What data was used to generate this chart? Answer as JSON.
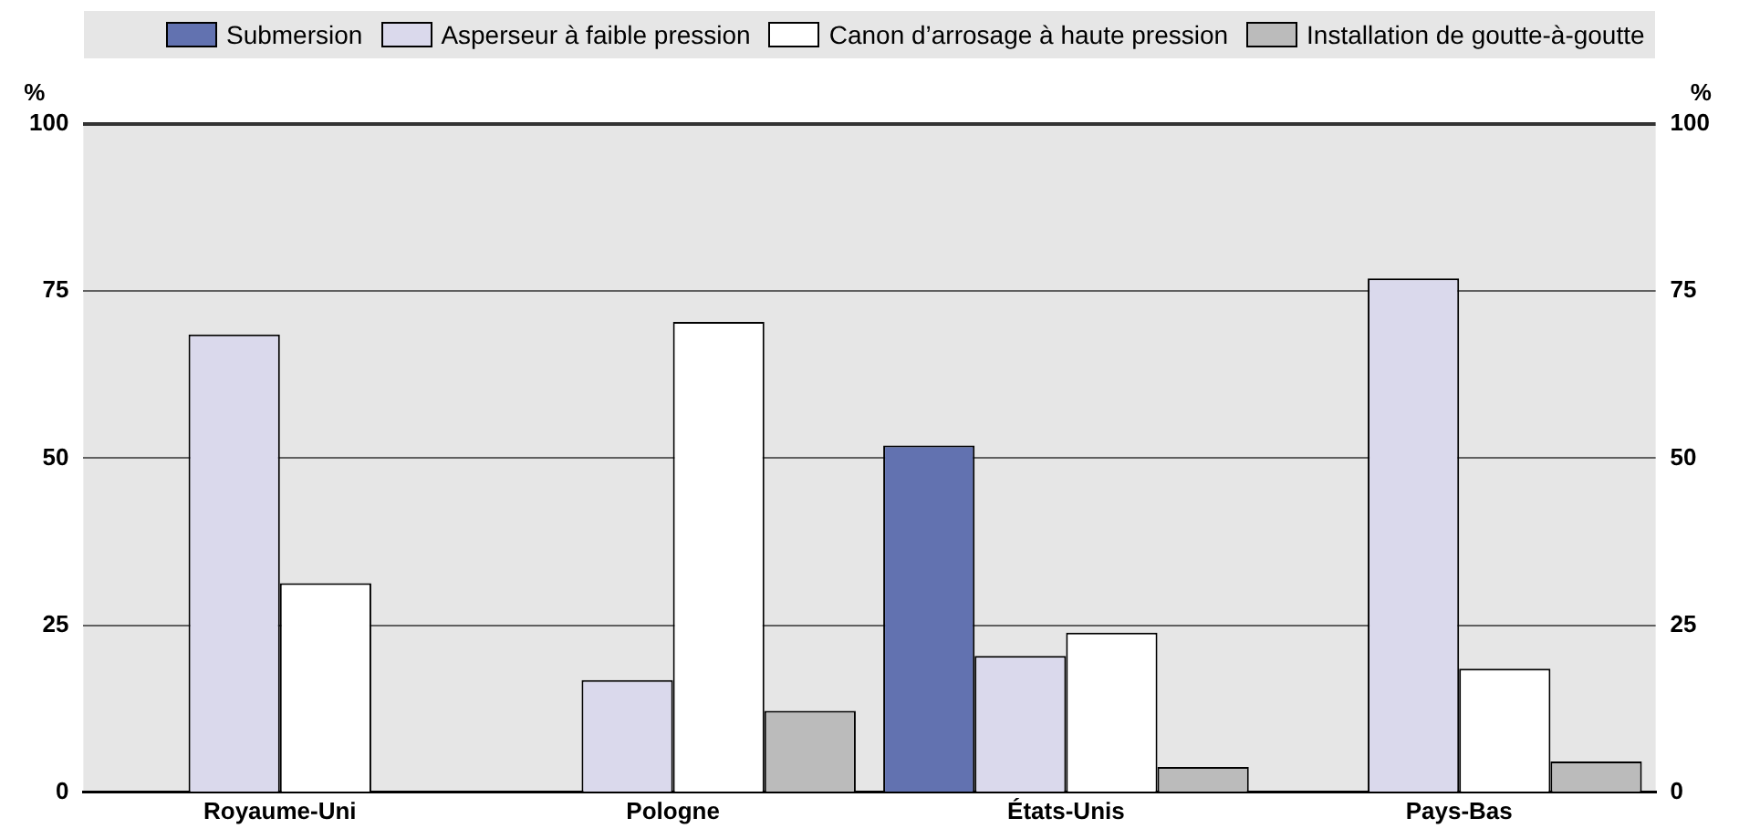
{
  "chart_data": {
    "type": "bar",
    "categories": [
      "Royaume-Uni",
      "Pologne",
      "États-Unis",
      "Pays-Bas"
    ],
    "series": [
      {
        "name": "Submersion",
        "color": "#6272b0",
        "values": [
          0,
          0,
          51.9,
          0
        ]
      },
      {
        "name": "Asperseur à faible pression",
        "color": "#dad9ec",
        "values": [
          68.5,
          16.8,
          20.4,
          76.9
        ]
      },
      {
        "name": "Canon d’arrosage à haute pression",
        "color": "#ffffff",
        "values": [
          31.3,
          70.4,
          23.9,
          18.5
        ]
      },
      {
        "name": "Installation de goutte-à-goutte",
        "color": "#bbbbbb",
        "values": [
          0,
          12.2,
          3.8,
          4.6
        ]
      }
    ],
    "ylabel": "%",
    "y2label": "%",
    "ylim": [
      0,
      100
    ],
    "yticks": [
      0,
      25,
      50,
      75,
      100
    ],
    "y2lim": [
      0,
      100
    ],
    "y2ticks": [
      0,
      25,
      50,
      75,
      100
    ],
    "grid": "y",
    "legend": "top"
  }
}
